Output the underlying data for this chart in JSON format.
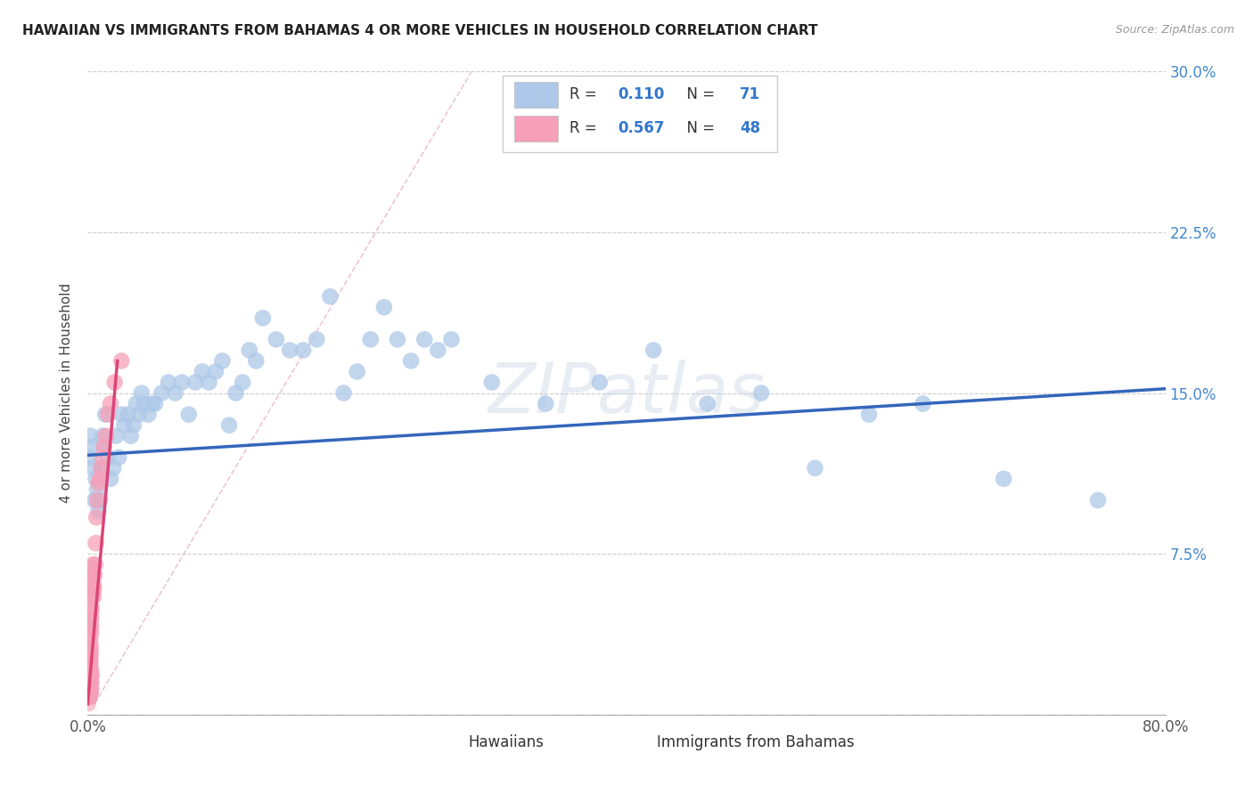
{
  "title": "HAWAIIAN VS IMMIGRANTS FROM BAHAMAS 4 OR MORE VEHICLES IN HOUSEHOLD CORRELATION CHART",
  "source": "Source: ZipAtlas.com",
  "ylabel": "4 or more Vehicles in Household",
  "xlim": [
    0.0,
    0.8
  ],
  "ylim": [
    0.0,
    0.3
  ],
  "xticks": [
    0.0,
    0.1,
    0.2,
    0.3,
    0.4,
    0.5,
    0.6,
    0.7,
    0.8
  ],
  "yticks": [
    0.0,
    0.075,
    0.15,
    0.225,
    0.3
  ],
  "hawaiians_R": 0.11,
  "hawaiians_N": 71,
  "bahamas_R": 0.567,
  "bahamas_N": 48,
  "hawaiians_color": "#adc8e8",
  "bahamas_color": "#f5a0b8",
  "hawaiians_line_color": "#3366bb",
  "bahamas_line_color": "#dd4477",
  "diag_color": "#e8b8cc",
  "watermark": "ZIPatlas",
  "hawaiians_x": [
    0.001,
    0.002,
    0.003,
    0.004,
    0.005,
    0.006,
    0.007,
    0.008,
    0.009,
    0.01,
    0.011,
    0.012,
    0.013,
    0.015,
    0.017,
    0.019,
    0.021,
    0.023,
    0.025,
    0.027,
    0.03,
    0.032,
    0.034,
    0.036,
    0.038,
    0.04,
    0.042,
    0.045,
    0.048,
    0.05,
    0.055,
    0.06,
    0.065,
    0.07,
    0.075,
    0.08,
    0.085,
    0.09,
    0.095,
    0.1,
    0.105,
    0.11,
    0.115,
    0.12,
    0.125,
    0.13,
    0.14,
    0.15,
    0.16,
    0.17,
    0.18,
    0.19,
    0.2,
    0.21,
    0.22,
    0.23,
    0.24,
    0.25,
    0.26,
    0.27,
    0.3,
    0.34,
    0.38,
    0.42,
    0.46,
    0.5,
    0.54,
    0.58,
    0.62,
    0.68,
    0.75
  ],
  "hawaiians_y": [
    0.12,
    0.13,
    0.125,
    0.115,
    0.1,
    0.11,
    0.105,
    0.095,
    0.1,
    0.115,
    0.13,
    0.125,
    0.14,
    0.12,
    0.11,
    0.115,
    0.13,
    0.12,
    0.14,
    0.135,
    0.14,
    0.13,
    0.135,
    0.145,
    0.14,
    0.15,
    0.145,
    0.14,
    0.145,
    0.145,
    0.15,
    0.155,
    0.15,
    0.155,
    0.14,
    0.155,
    0.16,
    0.155,
    0.16,
    0.165,
    0.135,
    0.15,
    0.155,
    0.17,
    0.165,
    0.185,
    0.175,
    0.17,
    0.17,
    0.175,
    0.195,
    0.15,
    0.16,
    0.175,
    0.19,
    0.175,
    0.165,
    0.175,
    0.17,
    0.175,
    0.155,
    0.145,
    0.155,
    0.17,
    0.145,
    0.15,
    0.115,
    0.14,
    0.145,
    0.11,
    0.1
  ],
  "bahamas_x": [
    0.0005,
    0.0006,
    0.0007,
    0.0008,
    0.0009,
    0.001,
    0.0011,
    0.0012,
    0.0013,
    0.0014,
    0.0015,
    0.0016,
    0.0017,
    0.0018,
    0.0019,
    0.002,
    0.0021,
    0.0022,
    0.0023,
    0.0024,
    0.0025,
    0.0026,
    0.0027,
    0.0028,
    0.003,
    0.0032,
    0.0034,
    0.0036,
    0.0038,
    0.004,
    0.0042,
    0.0044,
    0.0047,
    0.005,
    0.0055,
    0.006,
    0.0065,
    0.007,
    0.008,
    0.009,
    0.01,
    0.011,
    0.012,
    0.0135,
    0.015,
    0.017,
    0.02,
    0.025
  ],
  "bahamas_y": [
    0.01,
    0.012,
    0.013,
    0.011,
    0.015,
    0.02,
    0.018,
    0.022,
    0.025,
    0.018,
    0.025,
    0.022,
    0.028,
    0.03,
    0.035,
    0.03,
    0.028,
    0.032,
    0.04,
    0.038,
    0.042,
    0.045,
    0.048,
    0.05,
    0.055,
    0.058,
    0.06,
    0.065,
    0.068,
    0.07,
    0.055,
    0.058,
    0.06,
    0.065,
    0.07,
    0.08,
    0.092,
    0.1,
    0.108,
    0.11,
    0.115,
    0.12,
    0.125,
    0.13,
    0.14,
    0.145,
    0.155,
    0.165
  ],
  "bahamas_dense_x": [
    0.0005,
    0.0006,
    0.0007,
    0.0007,
    0.0008,
    0.0008,
    0.0009,
    0.0009,
    0.001,
    0.001,
    0.001,
    0.0011,
    0.0011,
    0.0012,
    0.0012,
    0.0013,
    0.0013,
    0.0014,
    0.0014,
    0.0015,
    0.0015,
    0.0016,
    0.0016,
    0.0017,
    0.0017,
    0.0018,
    0.0018,
    0.0019,
    0.0019,
    0.002,
    0.002,
    0.002,
    0.0021,
    0.0021,
    0.0022,
    0.0022,
    0.0023,
    0.0023,
    0.0024,
    0.0024,
    0.0025,
    0.0025,
    0.0026,
    0.0026,
    0.0027,
    0.0028,
    0.0029,
    0.003,
    0.003,
    0.0031
  ],
  "bahamas_dense_y": [
    0.005,
    0.008,
    0.01,
    0.015,
    0.008,
    0.012,
    0.01,
    0.015,
    0.008,
    0.012,
    0.018,
    0.01,
    0.015,
    0.008,
    0.012,
    0.01,
    0.018,
    0.012,
    0.02,
    0.01,
    0.015,
    0.008,
    0.018,
    0.012,
    0.02,
    0.01,
    0.015,
    0.008,
    0.018,
    0.01,
    0.015,
    0.02,
    0.012,
    0.018,
    0.01,
    0.02,
    0.012,
    0.018,
    0.01,
    0.022,
    0.015,
    0.02,
    0.012,
    0.025,
    0.015,
    0.018,
    0.012,
    0.015,
    0.02,
    0.018
  ]
}
